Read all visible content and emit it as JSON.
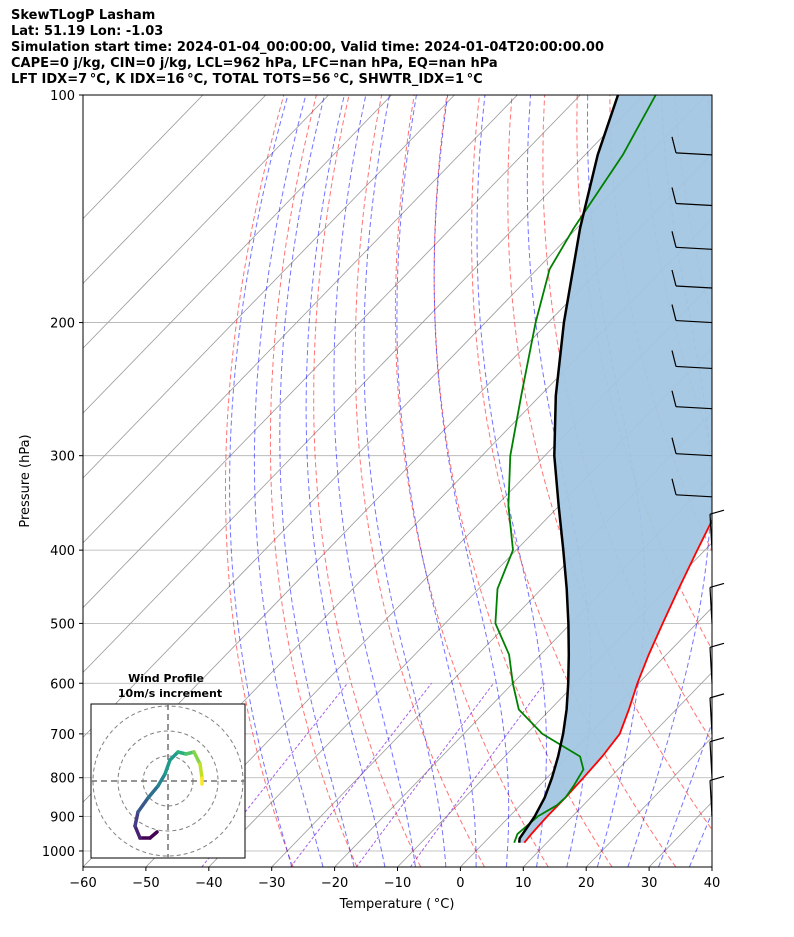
{
  "title_lines": [
    "SkewTLogP Lasham",
    "Lat: 51.19   Lon: -1.03",
    "Simulation start time: 2024-01-04_00:00:00, Valid time: 2024-01-04T20:00:00.00",
    "CAPE=0 j/kg, CIN=0 j/kg, LCL=962 hPa, LFC=nan hPa, EQ=nan hPa",
    "LFT IDX=7 °C, K IDX=16 °C, TOTAL TOTS=56 °C, SHWTR_IDX=1 °C"
  ],
  "chart_data": {
    "type": "line",
    "chart_kind": "skew-t log-p",
    "xlabel": "Temperature ( °C)",
    "ylabel": "Pressure (hPa)",
    "xlim": [
      -60,
      40
    ],
    "ylim": [
      1050,
      100
    ],
    "y_scale": "log",
    "x_ticks": [
      -60,
      -50,
      -40,
      -30,
      -20,
      -10,
      0,
      10,
      20,
      30,
      40
    ],
    "x_tick_labels": [
      "−60",
      "−50",
      "−40",
      "−30",
      "−20",
      "−10",
      "0",
      "10",
      "20",
      "30",
      "40"
    ],
    "y_ticks": [
      100,
      200,
      300,
      400,
      500,
      600,
      700,
      800,
      900,
      1000
    ],
    "y_tick_labels": [
      "100",
      "200",
      "300",
      "400",
      "500",
      "600",
      "700",
      "800",
      "900",
      "1000"
    ],
    "grid": true,
    "colors": {
      "temperature": "#ff0000",
      "dewpoint": "#008000",
      "parcel": "#000000",
      "shade": "#a3c6e1",
      "dry_adiabat": "#ff0000",
      "moist_adiabat": "#0000ff",
      "mixing_ratio": "#8a2be2",
      "isotherm": "#999999"
    },
    "series": [
      {
        "key": "temperature",
        "points": [
          [
            975,
            6.4
          ],
          [
            950,
            6.2
          ],
          [
            900,
            6.0
          ],
          [
            850,
            6.0
          ],
          [
            800,
            5.8
          ],
          [
            750,
            5.5
          ],
          [
            700,
            4.8
          ],
          [
            650,
            2.5
          ],
          [
            600,
            -0.2
          ],
          [
            550,
            -2.8
          ],
          [
            500,
            -5.4
          ],
          [
            450,
            -8.2
          ],
          [
            400,
            -11.2
          ],
          [
            350,
            -14.5
          ],
          [
            300,
            -18.5
          ],
          [
            270,
            -21.8
          ],
          [
            250,
            -24.0
          ],
          [
            220,
            -28.0
          ],
          [
            200,
            -32.5
          ],
          [
            180,
            -36.5
          ],
          [
            160,
            -39.5
          ],
          [
            140,
            -43.5
          ],
          [
            130,
            -46.5
          ],
          [
            120,
            -50.0
          ],
          [
            110,
            -53.5
          ],
          [
            100,
            -56.5
          ]
        ]
      },
      {
        "key": "dewpoint",
        "points": [
          [
            975,
            4.8
          ],
          [
            950,
            4.0
          ],
          [
            900,
            4.5
          ],
          [
            870,
            5.8
          ],
          [
            850,
            6.0
          ],
          [
            820,
            5.5
          ],
          [
            780,
            4.5
          ],
          [
            750,
            2.0
          ],
          [
            700,
            -7.5
          ],
          [
            650,
            -15.0
          ],
          [
            600,
            -20.0
          ],
          [
            550,
            -25.0
          ],
          [
            500,
            -32.0
          ],
          [
            450,
            -37.0
          ],
          [
            400,
            -40.5
          ],
          [
            350,
            -48.0
          ],
          [
            300,
            -55.5
          ],
          [
            250,
            -63.0
          ],
          [
            200,
            -72.0
          ],
          [
            170,
            -78.0
          ],
          [
            150,
            -80.5
          ],
          [
            120,
            -84.0
          ],
          [
            100,
            -88.0
          ]
        ]
      },
      {
        "key": "parcel",
        "points": [
          [
            975,
            5.6
          ],
          [
            962,
            5.0
          ],
          [
            900,
            4.0
          ],
          [
            850,
            2.7
          ],
          [
            800,
            0.8
          ],
          [
            750,
            -1.5
          ],
          [
            700,
            -4.2
          ],
          [
            650,
            -7.4
          ],
          [
            600,
            -11.2
          ],
          [
            550,
            -15.5
          ],
          [
            500,
            -20.4
          ],
          [
            450,
            -26.0
          ],
          [
            400,
            -32.5
          ],
          [
            350,
            -40.0
          ],
          [
            300,
            -48.5
          ],
          [
            250,
            -57.5
          ],
          [
            200,
            -67.5
          ],
          [
            150,
            -79.5
          ],
          [
            120,
            -88.0
          ],
          [
            100,
            -94.0
          ]
        ]
      }
    ],
    "wind_profile": {
      "title": "Wind Profile",
      "subtitle": "10m/s increment"
    }
  }
}
